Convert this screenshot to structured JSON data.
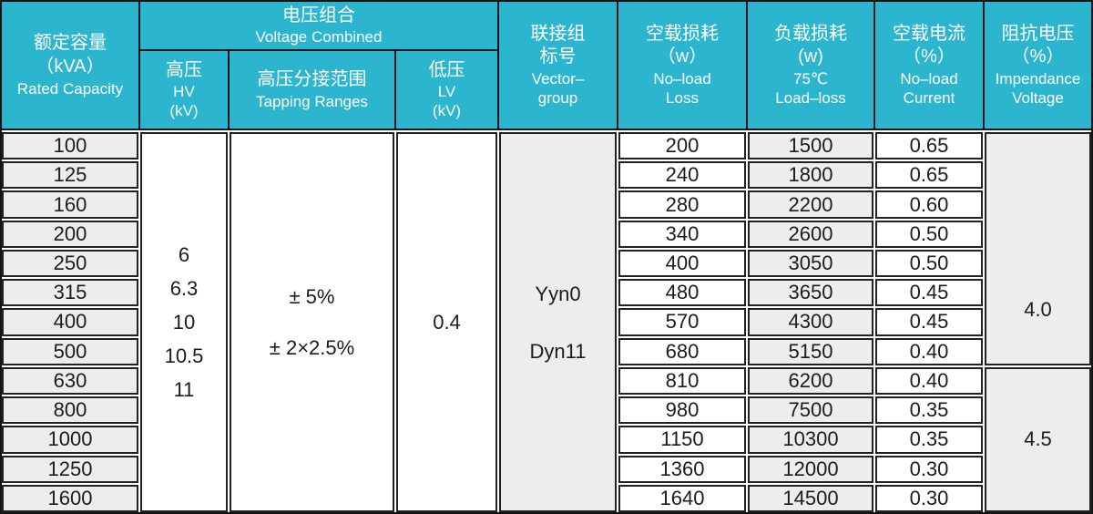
{
  "colors": {
    "header_teal": "#2cb5cf",
    "header_text": "#ffffff",
    "grid_border": "#222222",
    "shaded_cell": "#ededed",
    "body_text": "#1c1c1c"
  },
  "table": {
    "header": {
      "rated_capacity": {
        "zh": "额定容量\n（kVA）",
        "en": "Rated Capacity"
      },
      "voltage_combined_group": {
        "zh": "电压组合",
        "en": "Voltage Combined"
      },
      "hv": {
        "zh": "高压",
        "en": "HV\n(kV)"
      },
      "tapping": {
        "zh": "高压分接范围",
        "en": "Tapping Ranges"
      },
      "lv": {
        "zh": "低压",
        "en": "LV\n(kV)"
      },
      "vector_group": {
        "zh": "联接组\n标号",
        "en": "Vector–\ngroup"
      },
      "no_load_loss": {
        "zh": "空载损耗\n（w）",
        "en": "No–load\nLoss"
      },
      "load_loss": {
        "zh": "负载损耗\n(w)",
        "en": "75℃\nLoad–loss"
      },
      "no_load_current": {
        "zh": "空载电流\n（%）",
        "en": "No–load\nCurrent"
      },
      "impedance": {
        "zh": "阻抗电压\n（%）",
        "en": "Impendance\nVoltage"
      }
    },
    "spans": {
      "hv_values": "6\n6.3\n10\n10.5\n11",
      "tapping_values": "± 5%\n± 2×2.5%",
      "lv_value": "0.4",
      "vector_values": "Yyn0\nDyn11",
      "impedance_rows_100_500": "4.0",
      "impedance_rows_630_1600": "4.5"
    },
    "rows": [
      {
        "cap": "100",
        "nll": "200",
        "ll": "1500",
        "nlc": "0.65"
      },
      {
        "cap": "125",
        "nll": "240",
        "ll": "1800",
        "nlc": "0.65"
      },
      {
        "cap": "160",
        "nll": "280",
        "ll": "2200",
        "nlc": "0.60"
      },
      {
        "cap": "200",
        "nll": "340",
        "ll": "2600",
        "nlc": "0.50"
      },
      {
        "cap": "250",
        "nll": "400",
        "ll": "3050",
        "nlc": "0.50"
      },
      {
        "cap": "315",
        "nll": "480",
        "ll": "3650",
        "nlc": "0.45"
      },
      {
        "cap": "400",
        "nll": "570",
        "ll": "4300",
        "nlc": "0.45"
      },
      {
        "cap": "500",
        "nll": "680",
        "ll": "5150",
        "nlc": "0.40"
      },
      {
        "cap": "630",
        "nll": "810",
        "ll": "6200",
        "nlc": "0.40"
      },
      {
        "cap": "800",
        "nll": "980",
        "ll": "7500",
        "nlc": "0.35"
      },
      {
        "cap": "1000",
        "nll": "1150",
        "ll": "10300",
        "nlc": "0.35"
      },
      {
        "cap": "1250",
        "nll": "1360",
        "ll": "12000",
        "nlc": "0.30"
      },
      {
        "cap": "1600",
        "nll": "1640",
        "ll": "14500",
        "nlc": "0.30"
      }
    ]
  }
}
